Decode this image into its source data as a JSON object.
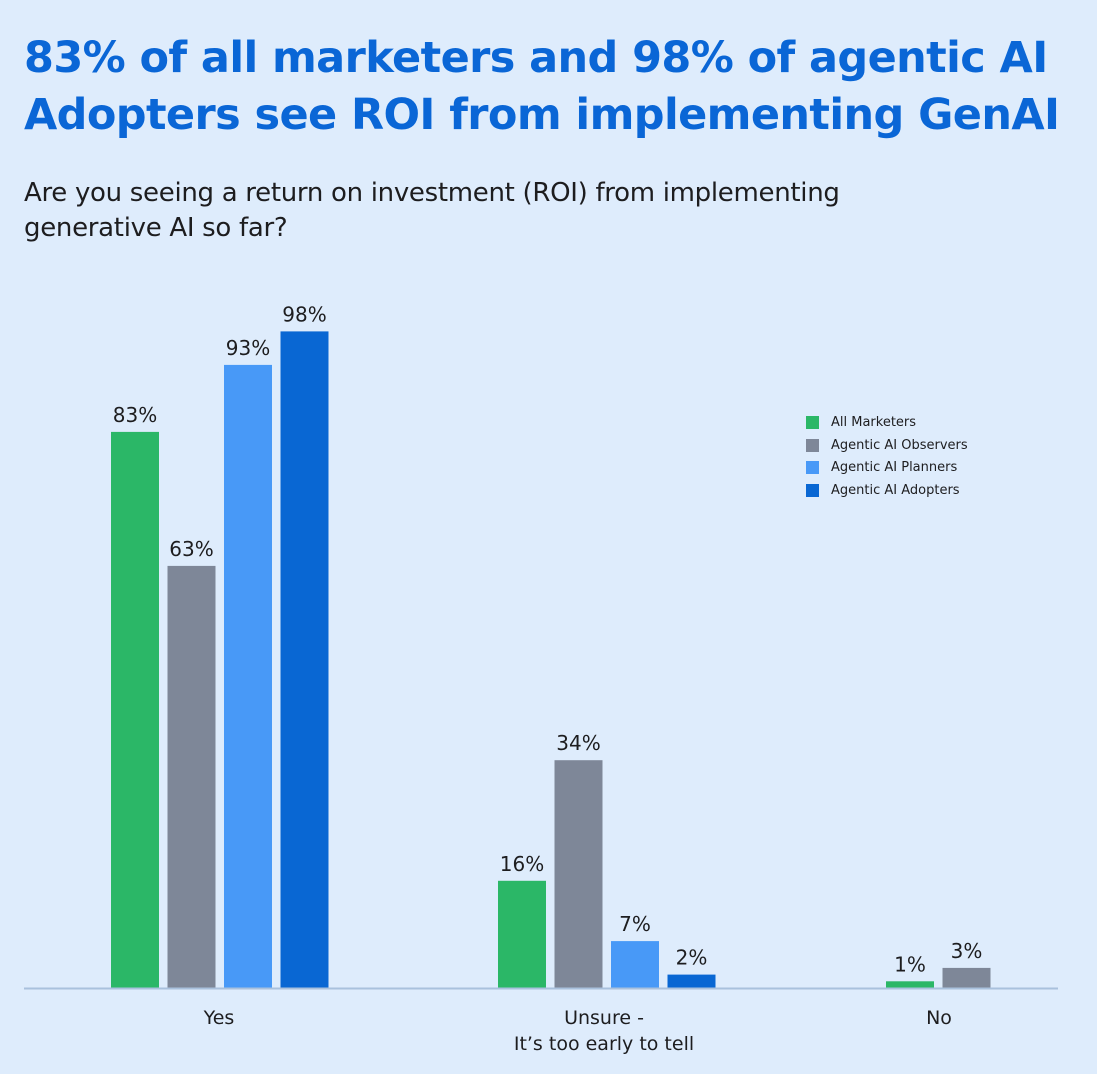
{
  "header": {
    "title": "83% of all marketers and 98% of agentic AI Adopters see ROI from implementing GenAI",
    "subtitle": "Are you seeing a return on investment (ROI) from implementing generative AI so far?"
  },
  "chart_data": {
    "type": "bar",
    "title": "83% of all marketers and 98% of agentic AI Adopters see ROI from implementing GenAI",
    "subtitle": "Are you seeing a return on investment (ROI) from implementing generative AI so far?",
    "categories": [
      [
        "Yes"
      ],
      [
        "Unsure -",
        "It’s too early to tell"
      ],
      [
        "No"
      ]
    ],
    "series": [
      {
        "name": "All Marketers",
        "color": "#2bb767",
        "values": [
          83,
          16,
          1
        ],
        "labels": [
          "83%",
          "16%",
          "1%"
        ]
      },
      {
        "name": "Agentic AI Observers",
        "color": "#7e8798",
        "values": [
          63,
          34,
          3
        ],
        "labels": [
          "63%",
          "34%",
          "3%"
        ]
      },
      {
        "name": "Agentic AI Planners",
        "color": "#4899f7",
        "values": [
          93,
          7,
          null
        ],
        "labels": [
          "93%",
          "7%",
          null
        ]
      },
      {
        "name": "Agentic AI Adopters",
        "color": "#0967d3",
        "values": [
          98,
          2,
          null
        ],
        "labels": [
          "98%",
          "2%",
          null
        ]
      }
    ],
    "ylim": [
      0,
      100
    ],
    "grid": false,
    "legend": "top-right",
    "baseline_color": "#a9c1dd"
  }
}
